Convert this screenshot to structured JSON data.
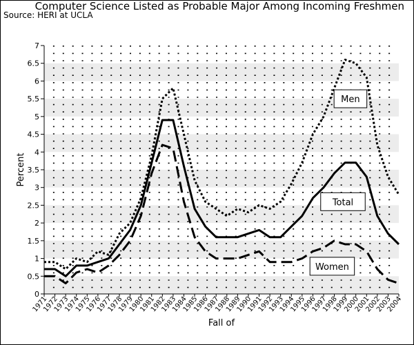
{
  "chart_data": {
    "type": "line",
    "title": "Computer Science Listed as Probable Major Among Incoming Freshmen",
    "subtitle": "Source: HERI at UCLA",
    "xlabel": "Fall of",
    "ylabel": "Percent",
    "ylim": [
      0,
      7
    ],
    "yticks": [
      "0",
      "0.5",
      "1",
      "1.5",
      "2",
      "2.5",
      "3",
      "3.5",
      "4",
      "4.5",
      "5",
      "5.5",
      "6",
      "6.5",
      "7"
    ],
    "x": [
      "1971",
      "1972",
      "1973",
      "1974",
      "1975",
      "1976",
      "1977",
      "1978",
      "1979",
      "1980",
      "1981",
      "1982",
      "1983",
      "1984",
      "1985",
      "1986",
      "1987",
      "1988",
      "1989",
      "1990",
      "1991",
      "1992",
      "1993",
      "1994",
      "1995",
      "1996",
      "1997",
      "1998",
      "1999",
      "2000",
      "2001",
      "2002",
      "2003",
      "2004"
    ],
    "grid": true,
    "legend": "inline labels",
    "series": [
      {
        "name": "Men",
        "style": "dotted",
        "values": [
          0.9,
          0.9,
          0.7,
          1.0,
          0.9,
          1.2,
          1.1,
          1.7,
          2.0,
          2.7,
          3.9,
          5.5,
          5.8,
          4.5,
          3.2,
          2.6,
          2.4,
          2.2,
          2.4,
          2.3,
          2.5,
          2.4,
          2.6,
          3.1,
          3.7,
          4.5,
          5.0,
          5.8,
          6.6,
          6.5,
          6.1,
          4.2,
          3.3,
          2.8
        ]
      },
      {
        "name": "Total",
        "style": "solid",
        "values": [
          0.7,
          0.7,
          0.5,
          0.8,
          0.8,
          0.9,
          1.0,
          1.4,
          1.8,
          2.5,
          3.7,
          4.9,
          4.9,
          3.6,
          2.4,
          1.9,
          1.6,
          1.6,
          1.6,
          1.7,
          1.8,
          1.6,
          1.6,
          1.9,
          2.2,
          2.7,
          3.0,
          3.4,
          3.7,
          3.7,
          3.3,
          2.2,
          1.7,
          1.4
        ]
      },
      {
        "name": "Women",
        "style": "dashed",
        "values": [
          0.5,
          0.5,
          0.3,
          0.6,
          0.7,
          0.6,
          0.8,
          1.1,
          1.5,
          2.2,
          3.4,
          4.2,
          4.1,
          2.6,
          1.6,
          1.2,
          1.0,
          1.0,
          1.0,
          1.1,
          1.2,
          0.9,
          0.9,
          0.9,
          1.0,
          1.2,
          1.3,
          1.5,
          1.4,
          1.4,
          1.2,
          0.7,
          0.4,
          0.3
        ]
      }
    ],
    "annotations": [
      {
        "text": "Men",
        "x": 1999.5,
        "y": 5.5
      },
      {
        "text": "Total",
        "x": 1998.8,
        "y": 2.6
      },
      {
        "text": "Women",
        "x": 1997.8,
        "y": 0.78
      }
    ]
  }
}
